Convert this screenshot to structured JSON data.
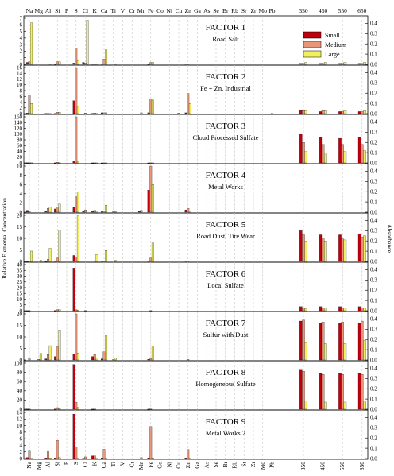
{
  "chart_data": {
    "type": "bar",
    "ylabel_left": "Relative Elemental Concentration",
    "ylabel_right": "Absorbance",
    "legend": [
      {
        "name": "Small",
        "color": "#c0000f"
      },
      {
        "name": "Medium",
        "color": "#e8967a"
      },
      {
        "name": "Large",
        "color": "#f0f060"
      }
    ],
    "legend_position": "top-right",
    "elements": [
      "Na",
      "Mg",
      "Al",
      "Si",
      "P",
      "S",
      "Cl",
      "K",
      "Ca",
      "Ti",
      "V",
      "Cr",
      "Mn",
      "Fe",
      "Co",
      "Ni",
      "Cu",
      "Zn",
      "Ga",
      "As",
      "Se",
      "Br",
      "Rb",
      "Sr",
      "Zr",
      "Mo",
      "Pb"
    ],
    "wavelengths": [
      "350",
      "450",
      "550",
      "650"
    ],
    "right_ticks": [
      "0.0",
      "0.1",
      "0.2",
      "0.3",
      "0.4"
    ],
    "panels": [
      {
        "title": "FACTOR 1",
        "subtitle": "Road Salt",
        "ymax": 7,
        "yticks": [
          0,
          1,
          2,
          3,
          4,
          5,
          6,
          7
        ],
        "rmax": 0.45,
        "bars": {
          "Na": [
            0.3,
            0.4,
            6.3
          ],
          "Al": [
            0,
            0,
            0.1
          ],
          "Si": [
            0.05,
            0.4,
            0.4
          ],
          "S": [
            0.2,
            2.5,
            0.6
          ],
          "Cl": [
            0.3,
            0.2,
            6.7
          ],
          "K": [
            0.1,
            0.1,
            0.1
          ],
          "Ca": [
            0.1,
            0.8,
            2.2
          ],
          "Ti": [
            0,
            0,
            0.1
          ],
          "Fe": [
            0.05,
            0.3,
            0.3
          ],
          "Zn": [
            0.1,
            0.1,
            0
          ]
        },
        "abs": {
          "350": [
            0.01,
            0.01,
            0.02
          ],
          "450": [
            0.01,
            0.01,
            0.02
          ],
          "550": [
            0.01,
            0.01,
            0.02
          ],
          "650": [
            0.01,
            0.01,
            0.02
          ]
        }
      },
      {
        "title": "FACTOR 2",
        "subtitle": "Fe + Zn, Industrial",
        "ymax": 16,
        "yticks": [
          0,
          2,
          4,
          6,
          8,
          10,
          12,
          14,
          16
        ],
        "rmax": 0.45,
        "bars": {
          "Na": [
            0.2,
            6.5,
            3.5
          ],
          "Al": [
            0.1,
            0.1,
            0.1
          ],
          "Si": [
            0.1,
            0.5,
            0.5
          ],
          "S": [
            4.5,
            16,
            2.5
          ],
          "Cl": [
            0,
            0.2,
            0
          ],
          "K": [
            0.1,
            0.2,
            0.1
          ],
          "Ca": [
            0.3,
            0.3,
            0.3
          ],
          "Mn": [
            0,
            0.3,
            0
          ],
          "Fe": [
            0.3,
            5,
            4.7
          ],
          "Cu": [
            0,
            0.2,
            0
          ],
          "Zn": [
            0.3,
            7,
            3.5
          ],
          "Pb": [
            0,
            0.1,
            0
          ]
        },
        "abs": {
          "350": [
            0.03,
            0.03,
            0.03
          ],
          "450": [
            0.02,
            0.03,
            0.03
          ],
          "550": [
            0.02,
            0.02,
            0.03
          ],
          "650": [
            0.02,
            0.02,
            0.03
          ]
        }
      },
      {
        "title": "FACTOR 3",
        "subtitle": "Cloud Processed Sulfate",
        "ymax": 160,
        "yticks": [
          0,
          20,
          40,
          60,
          80,
          100,
          120,
          140,
          160
        ],
        "rmax": 0.45,
        "bars": {
          "Na": [
            0.5,
            0.5,
            0.3
          ],
          "Si": [
            0.3,
            2,
            1
          ],
          "S": [
            5,
            160,
            4
          ],
          "K": [
            0.2,
            0.3,
            0.1
          ],
          "Ca": [
            0.1,
            0.2,
            0.1
          ],
          "Fe": [
            0.1,
            0.3,
            0.1
          ]
        },
        "abs": {
          "350": [
            0.28,
            0.2,
            0.11
          ],
          "450": [
            0.25,
            0.18,
            0.1
          ],
          "550": [
            0.24,
            0.18,
            0.11
          ],
          "650": [
            0.25,
            0.18,
            0.12
          ]
        }
      },
      {
        "title": "FACTOR 4",
        "subtitle": "Metal Works",
        "ymax": 10,
        "yticks": [
          0,
          2,
          4,
          6,
          8,
          10
        ],
        "rmax": 0.45,
        "bars": {
          "Na": [
            0.4,
            0.3,
            0
          ],
          "Al": [
            0.3,
            0.8,
            1.1
          ],
          "Si": [
            0.7,
            1.1,
            1.8
          ],
          "S": [
            1.1,
            3.3,
            4.4
          ],
          "Cl": [
            0.3,
            0.5,
            0
          ],
          "K": [
            0.2,
            0.4,
            0.2
          ],
          "Ca": [
            0.1,
            0.3,
            1.5
          ],
          "Ti": [
            0,
            0.1,
            0.1
          ],
          "Mn": [
            0.3,
            0.4,
            0
          ],
          "Fe": [
            4.8,
            10,
            6
          ],
          "Zn": [
            0.5,
            0.8,
            0.2
          ]
        },
        "abs": {
          "350": [
            0,
            0,
            0
          ],
          "450": [
            0,
            0,
            0
          ],
          "550": [
            0,
            0,
            0
          ],
          "650": [
            0,
            0,
            0
          ]
        }
      },
      {
        "title": "FACTOR 5",
        "subtitle": "Road Dust, Tire Wear",
        "ymax": 20,
        "yticks": [
          0,
          5,
          10,
          15,
          20
        ],
        "rmax": 0.45,
        "bars": {
          "Na": [
            0.1,
            0.3,
            4.5
          ],
          "Mg": [
            0,
            0,
            0.5
          ],
          "Al": [
            0.1,
            0.9,
            5.7
          ],
          "Si": [
            0.2,
            1.5,
            13.5
          ],
          "S": [
            2.6,
            2,
            20
          ],
          "K": [
            0,
            0.3,
            3
          ],
          "Ca": [
            0.2,
            0.2,
            4.7
          ],
          "Ti": [
            0,
            0,
            0.5
          ],
          "Fe": [
            0.2,
            1.5,
            8
          ],
          "Zn": [
            0.3,
            0.3,
            0
          ]
        },
        "abs": {
          "350": [
            0.3,
            0.26,
            0.2
          ],
          "450": [
            0.26,
            0.23,
            0.2
          ],
          "550": [
            0.26,
            0.22,
            0.21
          ],
          "650": [
            0.27,
            0.24,
            0.25
          ]
        }
      },
      {
        "title": "FACTOR 6",
        "subtitle": "Local Sulfate",
        "ymax": 40,
        "yticks": [
          0,
          5,
          10,
          15,
          20,
          25,
          30,
          35,
          40
        ],
        "rmax": 0.45,
        "bars": {
          "Na": [
            0.1,
            0.2,
            0
          ],
          "Si": [
            0.2,
            1,
            1
          ],
          "S": [
            37,
            1,
            0.5
          ],
          "Cl": [
            0,
            0.2,
            0
          ],
          "Fe": [
            0,
            0.2,
            0
          ]
        },
        "abs": {
          "350": [
            0.04,
            0.03,
            0.02
          ],
          "450": [
            0.04,
            0.03,
            0.03
          ],
          "550": [
            0.04,
            0.03,
            0.03
          ],
          "650": [
            0.04,
            0.03,
            0.03
          ]
        }
      },
      {
        "title": "FACTOR 7",
        "subtitle": "Sulfur with Dust",
        "ymax": 20,
        "yticks": [
          0,
          5,
          10,
          15,
          20
        ],
        "rmax": 0.45,
        "bars": {
          "Na": [
            0,
            1,
            0
          ],
          "Mg": [
            0,
            0.3,
            2.8
          ],
          "Al": [
            0.5,
            2.3,
            6.2
          ],
          "Si": [
            1.5,
            5.7,
            13
          ],
          "S": [
            2.7,
            20,
            3
          ],
          "K": [
            1.5,
            2.3,
            1
          ],
          "Ca": [
            0.5,
            3.5,
            10.5
          ],
          "Ti": [
            0,
            0.2,
            0.8
          ],
          "Fe": [
            0.3,
            0.7,
            6
          ],
          "Zn": [
            0,
            0.2,
            0
          ]
        },
        "abs": {
          "350": [
            0.38,
            0.39,
            0.17
          ],
          "450": [
            0.36,
            0.37,
            0.16
          ],
          "550": [
            0.36,
            0.37,
            0.16
          ],
          "650": [
            0.36,
            0.38,
            0.19
          ]
        }
      },
      {
        "title": "FACTOR 8",
        "subtitle": "Homogeneous Sulfate",
        "ymax": 100,
        "yticks": [
          0,
          20,
          40,
          60,
          80,
          100
        ],
        "rmax": 0.45,
        "bars": {
          "Na": [
            0.5,
            0.3,
            0
          ],
          "Si": [
            0.5,
            3.5,
            1
          ],
          "S": [
            97,
            15,
            4
          ],
          "K": [
            0.2,
            0.3,
            0
          ],
          "Fe": [
            0.2,
            0.5,
            0
          ]
        },
        "abs": {
          "350": [
            0.39,
            0.37,
            0.08
          ],
          "450": [
            0.35,
            0.34,
            0.07
          ],
          "550": [
            0.35,
            0.34,
            0.07
          ],
          "650": [
            0.35,
            0.34,
            0.08
          ]
        }
      },
      {
        "title": "FACTOR 9",
        "subtitle": "Metal Works 2",
        "ymax": 14,
        "yticks": [
          0,
          2,
          4,
          6,
          8,
          10,
          12,
          14
        ],
        "rmax": 0.45,
        "bars": {
          "Na": [
            0.3,
            2.5,
            0.1
          ],
          "Al": [
            0.2,
            2.4,
            0.2
          ],
          "Si": [
            0.2,
            5.5,
            0.3
          ],
          "S": [
            13.5,
            3.5,
            0.1
          ],
          "Cl": [
            0.1,
            0.5,
            0
          ],
          "K": [
            0.8,
            0.8,
            0.1
          ],
          "Ca": [
            0.2,
            2.8,
            0.1
          ],
          "Mn": [
            0,
            0.3,
            0
          ],
          "Fe": [
            0.2,
            9.7,
            0.2
          ],
          "Zn": [
            0.2,
            2.7,
            0.1
          ]
        },
        "abs": {
          "350": [
            0,
            0,
            0
          ],
          "450": [
            0,
            0,
            0
          ],
          "550": [
            0,
            0,
            0
          ],
          "650": [
            0,
            0,
            0
          ]
        }
      }
    ]
  }
}
